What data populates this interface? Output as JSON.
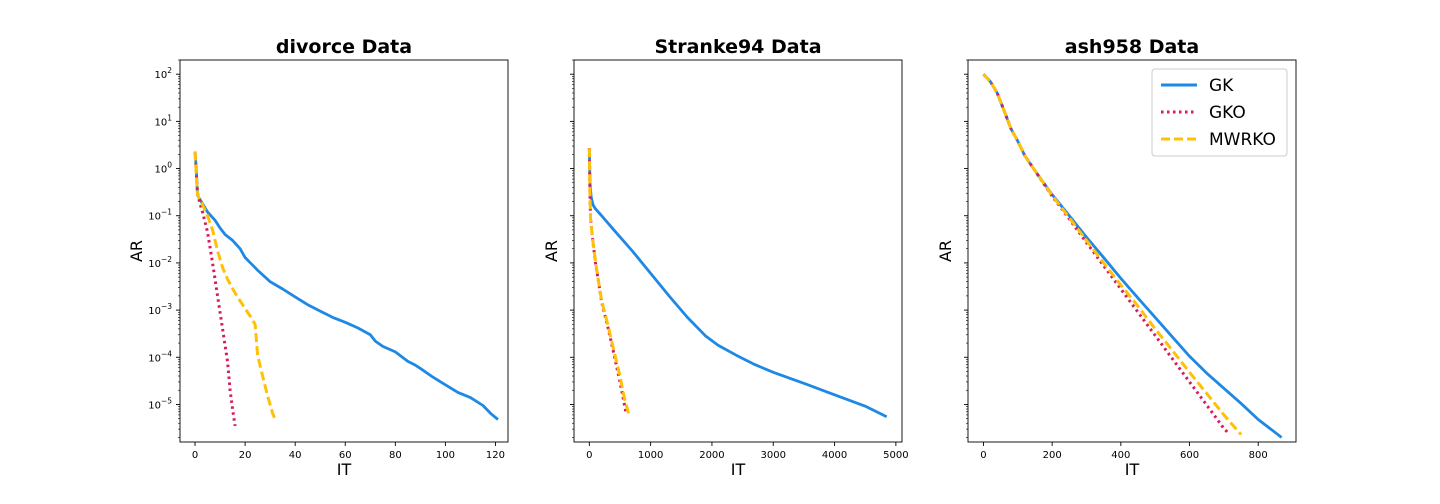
{
  "chart_data": [
    {
      "type": "line",
      "title": "divorce Data",
      "xlabel": "IT",
      "ylabel": "AR",
      "yscale": "log",
      "xlim": [
        -6,
        125
      ],
      "ylim": [
        1.6e-06,
        200
      ],
      "xticks": [
        0,
        20,
        40,
        60,
        80,
        100,
        120
      ],
      "xtick_labels": [
        "0",
        "20",
        "40",
        "60",
        "80",
        "100",
        "120"
      ],
      "yticks": [
        100,
        10,
        1,
        0.1,
        0.01,
        0.001,
        0.0001,
        1e-05
      ],
      "ytick_labels": [
        {
          "base": "10",
          "exp": "2"
        },
        {
          "base": "10",
          "exp": "1"
        },
        {
          "base": "10",
          "exp": "0"
        },
        {
          "base": "10",
          "exp": "−1"
        },
        {
          "base": "10",
          "exp": "−2"
        },
        {
          "base": "10",
          "exp": "−3"
        },
        {
          "base": "10",
          "exp": "−4"
        },
        {
          "base": "10",
          "exp": "−5"
        }
      ],
      "grid": false,
      "series": [
        {
          "name": "GK",
          "x": [
            0,
            0.5,
            1,
            3,
            5,
            8,
            10,
            12,
            15,
            18,
            20,
            25,
            30,
            35,
            40,
            45,
            50,
            55,
            60,
            65,
            70,
            72,
            75,
            80,
            85,
            88,
            90,
            95,
            100,
            105,
            110,
            115,
            118,
            121
          ],
          "y": [
            2.3,
            1.0,
            0.27,
            0.18,
            0.12,
            0.08,
            0.055,
            0.04,
            0.03,
            0.02,
            0.013,
            0.007,
            0.004,
            0.0028,
            0.0019,
            0.0013,
            0.00095,
            0.0007,
            0.00055,
            0.00042,
            0.0003,
            0.00022,
            0.00017,
            0.00013,
            8.2e-05,
            6.8e-05,
            5.8e-05,
            3.8e-05,
            2.6e-05,
            1.8e-05,
            1.4e-05,
            9.5e-06,
            6.5e-06,
            4.8e-06
          ]
        },
        {
          "name": "GKO",
          "x": [
            0,
            0.5,
            1,
            2,
            3,
            5,
            7,
            9,
            11,
            13,
            14,
            15,
            16
          ],
          "y": [
            2.3,
            0.8,
            0.3,
            0.18,
            0.12,
            0.045,
            0.01,
            0.002,
            0.0004,
            8e-05,
            2e-05,
            8e-06,
            3.5e-06
          ]
        },
        {
          "name": "MWRKO",
          "x": [
            0,
            0.5,
            1,
            3,
            5,
            7,
            9,
            11,
            13,
            16,
            19,
            22,
            24,
            25,
            27,
            29,
            31,
            32
          ],
          "y": [
            2.3,
            0.8,
            0.28,
            0.17,
            0.1,
            0.05,
            0.018,
            0.008,
            0.0045,
            0.0023,
            0.0013,
            0.00075,
            0.0005,
            0.00011,
            4e-05,
            1.5e-05,
            6.5e-06,
            4.8e-06
          ]
        }
      ]
    },
    {
      "type": "line",
      "title": "Stranke94 Data",
      "xlabel": "IT",
      "ylabel": "AR",
      "yscale": "log",
      "xlim": [
        -250,
        5100
      ],
      "ylim": [
        1.6e-06,
        200
      ],
      "xticks": [
        0,
        1000,
        2000,
        3000,
        4000,
        5000
      ],
      "xtick_labels": [
        "0",
        "1000",
        "2000",
        "3000",
        "4000",
        "5000"
      ],
      "yticks": [
        100,
        10,
        1,
        0.1,
        0.01,
        0.001,
        0.0001,
        1e-05
      ],
      "grid": false,
      "series": [
        {
          "name": "GK",
          "x": [
            0,
            5,
            10,
            30,
            60,
            100,
            200,
            400,
            700,
            1000,
            1300,
            1600,
            1900,
            2100,
            2400,
            2700,
            3000,
            3500,
            4000,
            4500,
            4850
          ],
          "y": [
            2.7,
            1.2,
            0.5,
            0.25,
            0.17,
            0.14,
            0.1,
            0.05,
            0.018,
            0.006,
            0.002,
            0.0007,
            0.00028,
            0.00018,
            0.00011,
            7e-05,
            4.8e-05,
            2.8e-05,
            1.6e-05,
            9.2e-06,
            5.5e-06
          ]
        },
        {
          "name": "GKO",
          "x": [
            0,
            5,
            10,
            20,
            50,
            100,
            150,
            200,
            300,
            400,
            500,
            560,
            600
          ],
          "y": [
            2.7,
            1.0,
            0.3,
            0.09,
            0.035,
            0.01,
            0.004,
            0.0015,
            0.00045,
            0.00012,
            3e-05,
            1.2e-05,
            6.5e-06
          ]
        },
        {
          "name": "MWRKO",
          "x": [
            0,
            5,
            10,
            20,
            50,
            100,
            150,
            200,
            300,
            400,
            500,
            570,
            640
          ],
          "y": [
            2.7,
            1.0,
            0.3,
            0.09,
            0.035,
            0.011,
            0.004,
            0.0016,
            0.0005,
            0.00014,
            4e-05,
            1.4e-05,
            6.5e-06
          ]
        }
      ]
    },
    {
      "type": "line",
      "title": "ash958 Data",
      "xlabel": "IT",
      "ylabel": "AR",
      "yscale": "log",
      "xlim": [
        -45,
        910
      ],
      "ylim": [
        1.6e-06,
        200
      ],
      "xticks": [
        0,
        200,
        400,
        600,
        800
      ],
      "xtick_labels": [
        "0",
        "200",
        "400",
        "600",
        "800"
      ],
      "yticks": [
        100,
        10,
        1,
        0.1,
        0.01,
        0.001,
        0.0001,
        1e-05
      ],
      "grid": false,
      "legend": {
        "position": "top-right",
        "entries": [
          "GK",
          "GKO",
          "MWRKO"
        ]
      },
      "series": [
        {
          "name": "GK",
          "x": [
            0,
            20,
            40,
            60,
            80,
            100,
            120,
            150,
            200,
            250,
            300,
            350,
            400,
            450,
            500,
            550,
            600,
            650,
            700,
            750,
            800,
            868
          ],
          "y": [
            100,
            70,
            40,
            17,
            7,
            3.8,
            1.9,
            0.9,
            0.28,
            0.1,
            0.035,
            0.013,
            0.0047,
            0.0018,
            0.0007,
            0.00027,
            0.000105,
            4.6e-05,
            2.2e-05,
            1.05e-05,
            4.8e-06,
            2e-06
          ]
        },
        {
          "name": "GKO",
          "x": [
            0,
            20,
            40,
            60,
            80,
            100,
            120,
            150,
            200,
            250,
            300,
            350,
            400,
            450,
            500,
            550,
            600,
            650,
            700,
            710
          ],
          "y": [
            100,
            70,
            40,
            17,
            7,
            3.8,
            1.9,
            0.9,
            0.26,
            0.085,
            0.027,
            0.0087,
            0.0028,
            0.0009,
            0.00029,
            9.3e-05,
            3e-05,
            9.7e-06,
            3.1e-06,
            2.6e-06
          ]
        },
        {
          "name": "MWRKO",
          "x": [
            0,
            20,
            40,
            60,
            80,
            100,
            120,
            150,
            200,
            250,
            300,
            350,
            400,
            450,
            500,
            550,
            600,
            650,
            700,
            750
          ],
          "y": [
            100,
            70,
            40,
            17,
            7,
            3.8,
            1.9,
            0.9,
            0.27,
            0.09,
            0.03,
            0.01,
            0.0034,
            0.0012,
            0.0004,
            0.00014,
            4.8e-05,
            1.7e-05,
            6e-06,
            2.3e-06
          ]
        }
      ]
    }
  ],
  "colors": {
    "GK": "#1e88e5",
    "GKO": "#d81b60",
    "MWRKO": "#ffc107"
  }
}
